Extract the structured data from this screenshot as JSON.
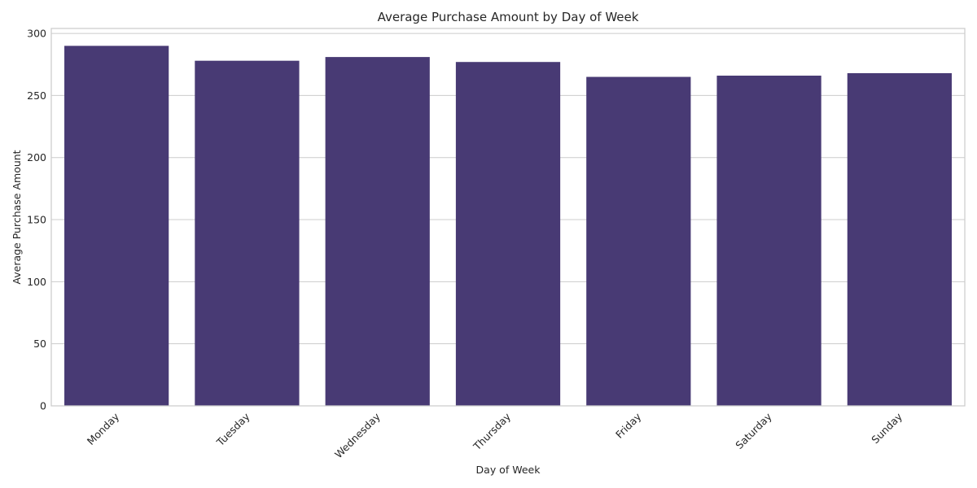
{
  "chart_data": {
    "type": "bar",
    "title": "Average Purchase Amount by Day of Week",
    "xlabel": "Day of Week",
    "ylabel": "Average Purchase Amount",
    "categories": [
      "Monday",
      "Tuesday",
      "Wednesday",
      "Thursday",
      "Friday",
      "Saturday",
      "Sunday"
    ],
    "values": [
      290,
      278,
      281,
      277,
      265,
      266,
      268
    ],
    "ylim": [
      0,
      304
    ],
    "yticks": [
      0,
      50,
      100,
      150,
      200,
      250,
      300
    ],
    "grid": true,
    "bar_color": "#483a74"
  }
}
